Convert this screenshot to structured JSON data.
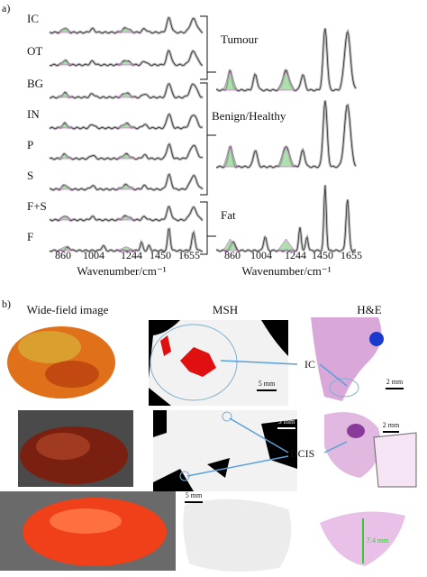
{
  "panel_a": {
    "label": "a)",
    "left": {
      "row_labels": [
        "IC",
        "OT",
        "BG",
        "IN",
        "P",
        "S",
        "F+S",
        "F"
      ],
      "ticks": [
        860,
        1004,
        1244,
        1450,
        1655
      ],
      "axis_label": "Wavenumber/cm⁻¹"
    },
    "right": {
      "group_labels": [
        "Tumour",
        "Benign/Healthy",
        "Fat"
      ],
      "ticks": [
        860,
        1004,
        1244,
        1450,
        1655
      ],
      "axis_label": "Wavenumber/cm⁻¹"
    }
  },
  "panel_b": {
    "label": "b)",
    "columns": [
      "Wide-field image",
      "MSH",
      "H&E"
    ],
    "rows": [
      {
        "msh_scale": "5 mm",
        "he_scale": "2 mm",
        "annotation": "IC"
      },
      {
        "msh_scale": "5 mm",
        "he_scale": "2 mm",
        "annotation": "DCIS"
      },
      {
        "msh_scale": "5 mm",
        "he_scale": "7.4 mm"
      }
    ]
  }
}
